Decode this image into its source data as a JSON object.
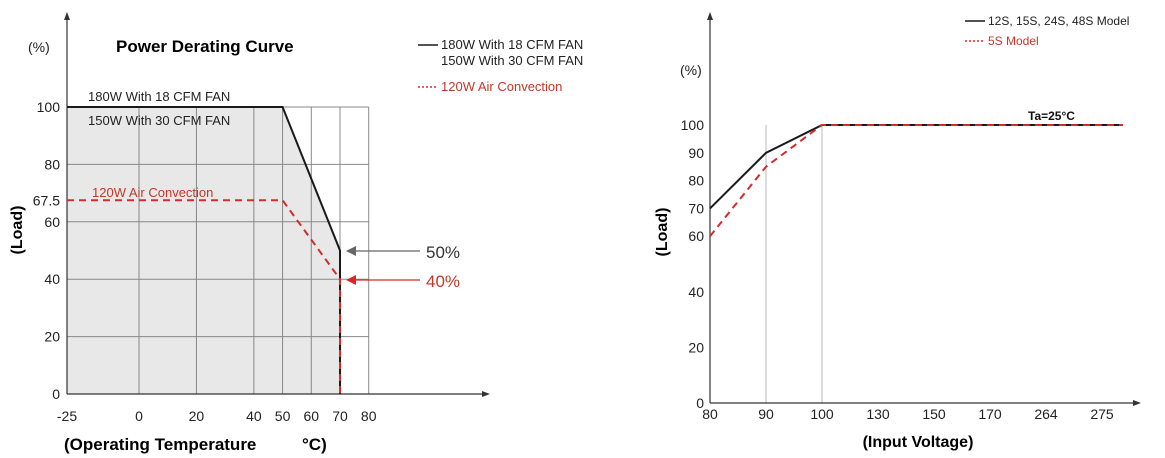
{
  "colors": {
    "black": "#1a1a1a",
    "red": "#d62a2a",
    "shade": "#e8e8e8",
    "grid": "#888888",
    "vgrid": "#bbbbbb",
    "arrow": "#666666"
  },
  "chart_data": [
    {
      "type": "line",
      "title": "Power Derating Curve",
      "ylabel_unit": "(%)",
      "ylabel": "(Load)",
      "xlabel": "(Operating Temperature",
      "xlabel_unit": "°C)",
      "ylim": [
        0,
        100
      ],
      "xlim": [
        -25,
        80
      ],
      "xticks": [
        -25,
        0,
        20,
        40,
        50,
        60,
        70,
        80
      ],
      "yticks": [
        0,
        20,
        40,
        60,
        67.5,
        80,
        100
      ],
      "xtick_labels": [
        "-25",
        "0",
        "20",
        "40",
        "50",
        "60",
        "70",
        "80"
      ],
      "ytick_labels": [
        "0",
        "20",
        "40",
        "60",
        "67.5",
        "80",
        "100"
      ],
      "grid": true,
      "legend": {
        "solid_line1": "180W With 18 CFM FAN",
        "solid_line2": "150W With 30 CFM FAN",
        "dashed": "120W Air Convection",
        "placement": "top-right"
      },
      "series": [
        {
          "name": "180W With 18 CFM FAN / 150W With 30 CFM FAN",
          "style": "solid",
          "color": "black",
          "points": [
            [
              -25,
              100
            ],
            [
              50,
              100
            ],
            [
              70,
              50
            ],
            [
              70,
              0
            ]
          ]
        },
        {
          "name": "120W Air Convection",
          "style": "dashed",
          "color": "red",
          "points": [
            [
              -25,
              67.5
            ],
            [
              50,
              67.5
            ],
            [
              70,
              40
            ],
            [
              70,
              0
            ]
          ]
        }
      ],
      "annotations": {
        "solid_label1": "180W With 18 CFM FAN",
        "solid_label2": "150W With 30 CFM FAN",
        "dashed_label": "120W Air Convection",
        "pct50": "50%",
        "pct40": "40%"
      }
    },
    {
      "type": "line",
      "ylabel_unit": "(%)",
      "ylabel": "(Load)",
      "xlabel": "(Input Voltage)",
      "ylim": [
        0,
        100
      ],
      "xticks": [
        "80",
        "90",
        "100",
        "130",
        "150",
        "170",
        "264",
        "275"
      ],
      "yticks": [
        0,
        20,
        40,
        60,
        70,
        80,
        90,
        100
      ],
      "ytick_labels": [
        "0",
        "20",
        "40",
        "60",
        "70",
        "80",
        "90",
        "100"
      ],
      "grid": false,
      "legend": {
        "solid": "12S, 15S, 24S, 48S Model",
        "dashed": "5S Model",
        "placement": "top-right"
      },
      "series": [
        {
          "name": "12S, 15S, 24S, 48S Model",
          "style": "solid",
          "color": "black",
          "points": [
            [
              "80",
              70
            ],
            [
              "90",
              90
            ],
            [
              "100",
              100
            ],
            [
              "275",
              100
            ]
          ]
        },
        {
          "name": "5S Model",
          "style": "dashed",
          "color": "red",
          "points": [
            [
              "80",
              60
            ],
            [
              "90",
              85
            ],
            [
              "100",
              100
            ],
            [
              "275",
              100
            ]
          ]
        }
      ],
      "annotation": "Ta=25°C"
    }
  ]
}
